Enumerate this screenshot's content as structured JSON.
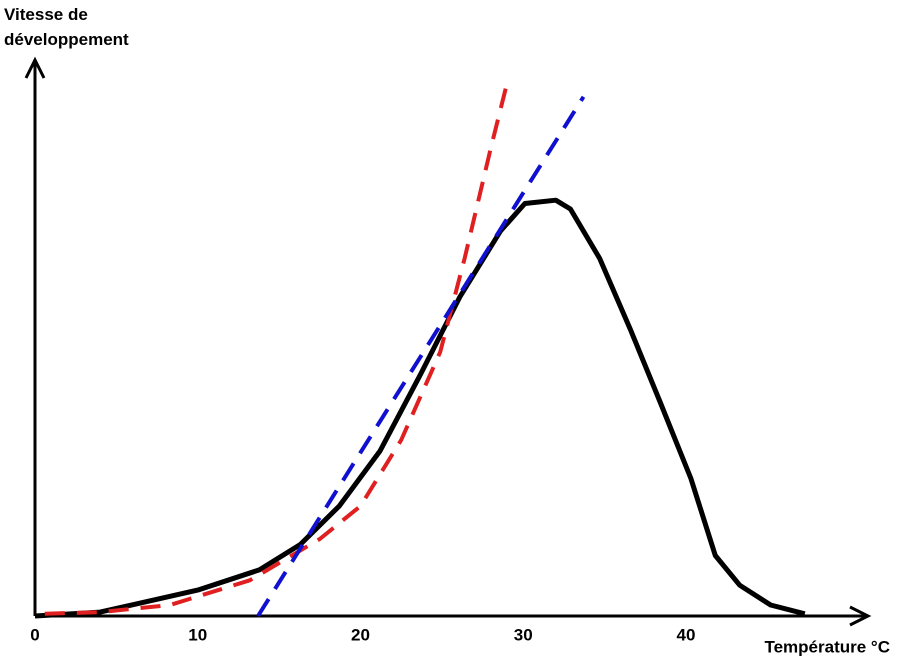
{
  "chart_data": {
    "type": "line",
    "ylabel": "Vitesse de développement",
    "xlabel": "Température °C",
    "xlim": [
      0,
      51
    ],
    "xticks": [
      0,
      10,
      20,
      30,
      40
    ],
    "ylim": [
      0,
      100
    ],
    "series": [
      {
        "color": "#000000",
        "dash": false,
        "x": [
          0,
          4,
          10,
          13.8,
          16.3,
          18.7,
          21.2,
          23.7,
          26.1,
          28.6,
          30.1,
          32,
          32.9,
          34.7,
          36.6,
          38.4,
          40.3,
          41.8,
          43.3,
          45.2,
          47.3
        ],
        "values": [
          0,
          0.7,
          4.7,
          8.4,
          13,
          20,
          30,
          44,
          58,
          70,
          75,
          75.6,
          74,
          65,
          52,
          39,
          25,
          11,
          5.6,
          2,
          0.4
        ]
      },
      {
        "color": "#e02020",
        "dash": true,
        "x": [
          0.6,
          4,
          8.3,
          13.2,
          17.5,
          20,
          22.5,
          24.9,
          26.4,
          28,
          29.1
        ],
        "values": [
          0.4,
          0.7,
          2,
          6.5,
          14,
          20,
          32,
          48,
          65,
          85,
          98
        ]
      },
      {
        "color": "#1010d0",
        "dash": true,
        "x": [
          13.7,
          33.7
        ],
        "values": [
          0,
          94.4
        ]
      }
    ]
  }
}
